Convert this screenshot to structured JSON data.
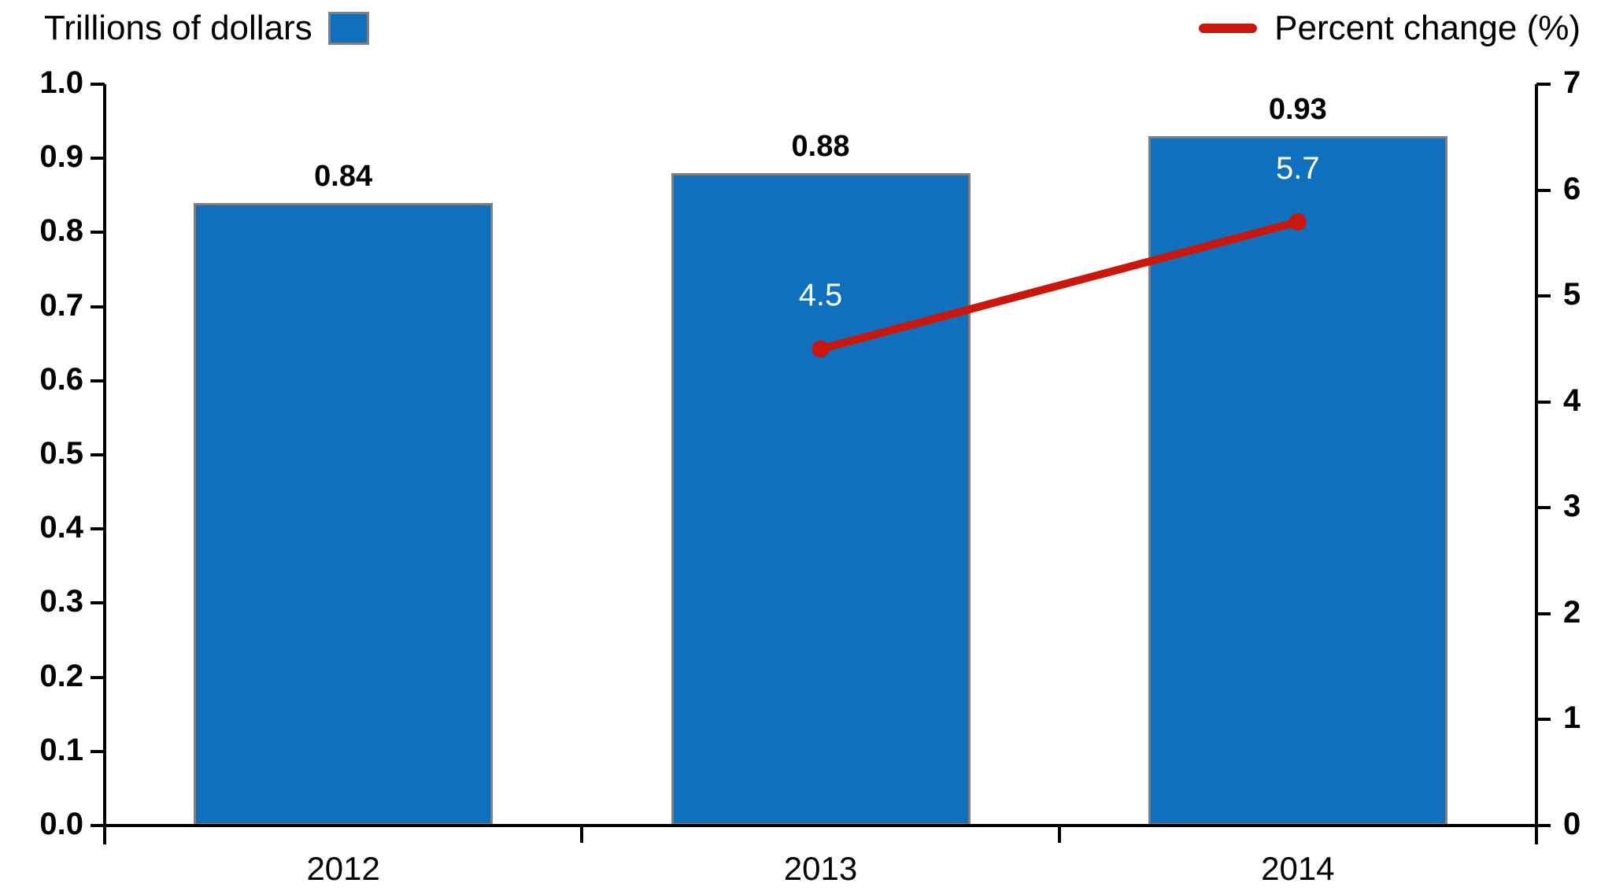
{
  "chart_data": {
    "type": "combo-bar-line",
    "title": "",
    "categories": [
      "2012",
      "2013",
      "2014"
    ],
    "series": [
      {
        "name": "Trillions of dollars",
        "type": "bar",
        "axis": "left",
        "values": [
          0.84,
          0.88,
          0.93
        ],
        "data_labels": [
          "0.84",
          "0.88",
          "0.93"
        ],
        "color": "#1070BE",
        "border_color": "#7F7F7F"
      },
      {
        "name": "Percent change (%)",
        "type": "line",
        "axis": "right",
        "values": [
          null,
          4.5,
          5.7
        ],
        "data_labels": [
          null,
          "4.5",
          "5.7"
        ],
        "color": "#C9170D",
        "label_color": "#FFFFFF"
      }
    ],
    "left_axis": {
      "min": 0.0,
      "max": 1.0,
      "step": 0.1,
      "tick_labels": [
        "0.0",
        "0.1",
        "0.2",
        "0.3",
        "0.4",
        "0.5",
        "0.6",
        "0.7",
        "0.8",
        "0.9",
        "1.0"
      ]
    },
    "right_axis": {
      "min": 0,
      "max": 7,
      "step": 1,
      "tick_labels": [
        "0",
        "1",
        "2",
        "3",
        "4",
        "5",
        "6",
        "7"
      ]
    },
    "legend": {
      "bar_label": "Trillions of dollars",
      "line_label": "Percent change (%)"
    },
    "axis_color": "#000000",
    "background": "#FFFFFF",
    "legend_position": "top",
    "grid": "off"
  }
}
